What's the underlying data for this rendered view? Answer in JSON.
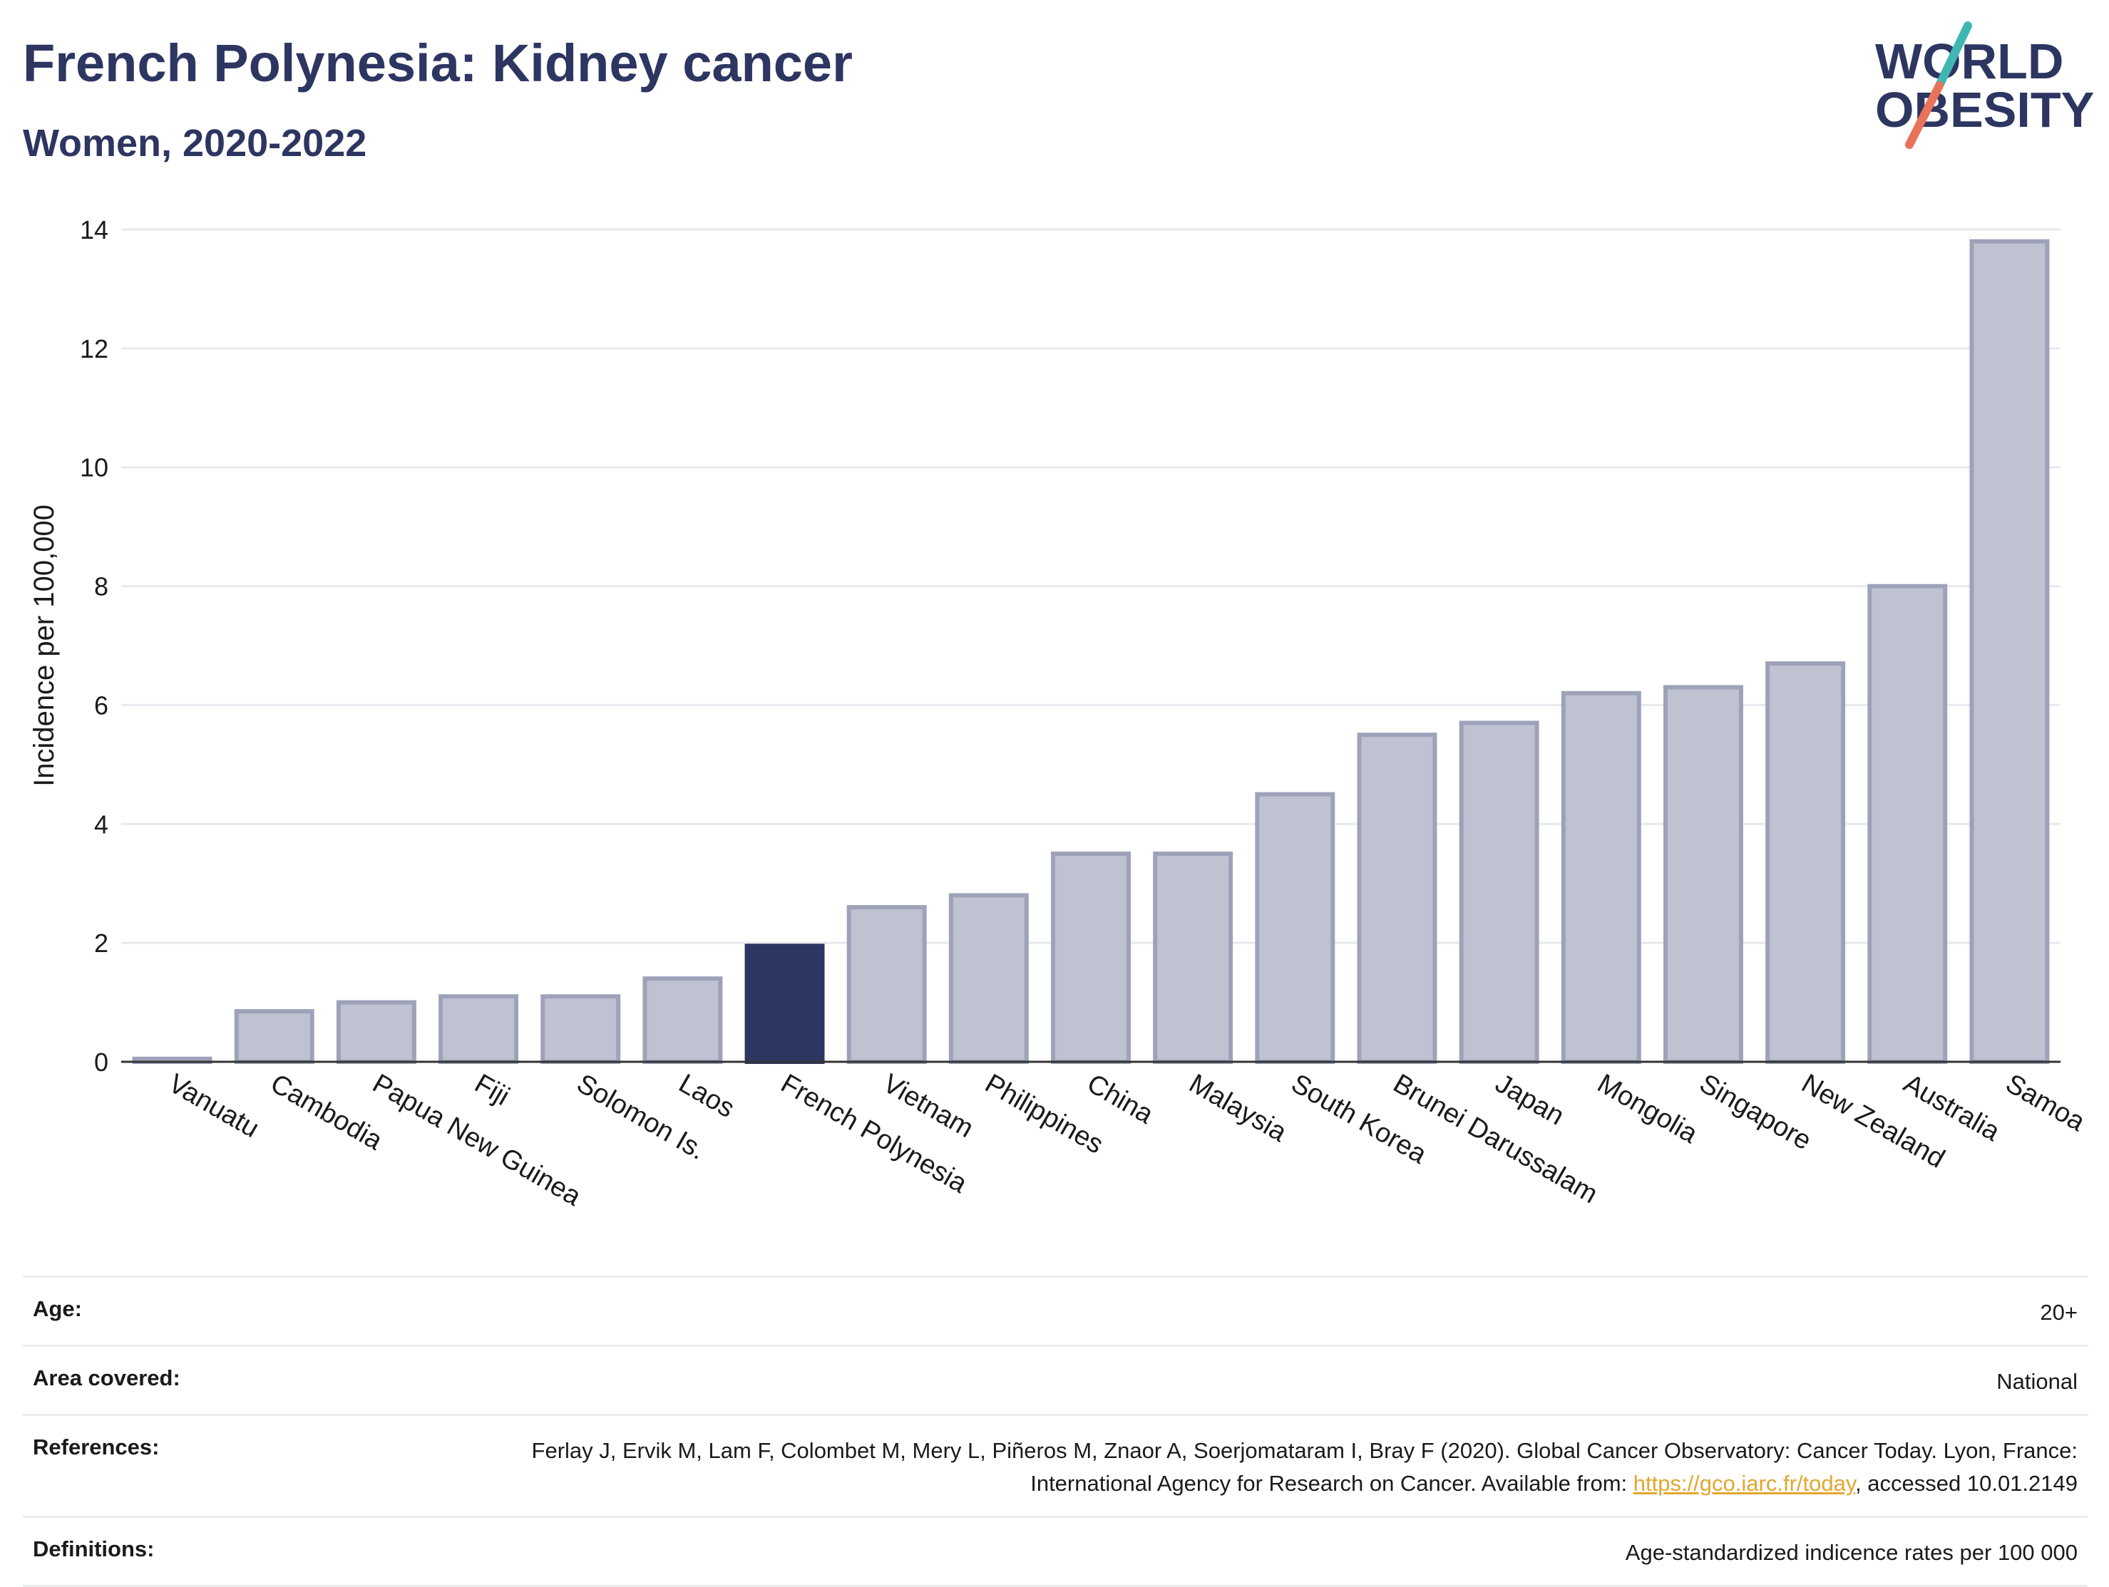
{
  "header": {
    "title": "French Polynesia: Kidney cancer",
    "subtitle": "Women, 2020-2022"
  },
  "logo": {
    "line1": "WORLD",
    "line2": "OBESITY",
    "colors": {
      "text": "#2d3561",
      "slash_teal": "#3fb6b2",
      "slash_coral": "#e8735a"
    }
  },
  "chart_data": {
    "type": "bar",
    "title": "French Polynesia: Kidney cancer",
    "subtitle": "Women, 2020-2022",
    "xlabel": "",
    "ylabel": "Incidence per 100,000",
    "ylim": [
      0,
      14
    ],
    "yticks": [
      0,
      2,
      4,
      6,
      8,
      10,
      12,
      14
    ],
    "grid": true,
    "categories": [
      "Vanuatu",
      "Cambodia",
      "Papua New Guinea",
      "Fiji",
      "Solomon Is.",
      "Laos",
      "French Polynesia",
      "Vietnam",
      "Philippines",
      "China",
      "Malaysia",
      "South Korea",
      "Brunei Darussalam",
      "Japan",
      "Mongolia",
      "Singapore",
      "New Zealand",
      "Australia",
      "Samoa"
    ],
    "values": [
      0.05,
      0.85,
      1.0,
      1.1,
      1.1,
      1.4,
      1.95,
      2.6,
      2.8,
      3.5,
      3.5,
      4.5,
      5.5,
      5.7,
      6.2,
      6.3,
      6.7,
      8.0,
      13.8
    ],
    "highlight": "French Polynesia",
    "colors": {
      "bar": "#bfc2d0",
      "bar_edge": "#9da2b9",
      "highlight": "#2d3561",
      "grid": "#e6e9ee",
      "axis": "#333333"
    }
  },
  "footer": {
    "age_label": "Age:",
    "age_value": "20+",
    "area_label": "Area covered:",
    "area_value": "National",
    "references_label": "References:",
    "references_text": "Ferlay J, Ervik M, Lam F, Colombet M, Mery L, Piñeros M, Znaor A, Soerjomataram I, Bray F (2020). Global Cancer Observatory: Cancer Today. Lyon, France: International Agency for Research on Cancer. Available from: ",
    "references_link": "https://gco.iarc.fr/today",
    "references_suffix": ", accessed 10.01.2149",
    "definitions_label": "Definitions:",
    "definitions_value": "Age-standardized indicence rates per 100 000"
  }
}
